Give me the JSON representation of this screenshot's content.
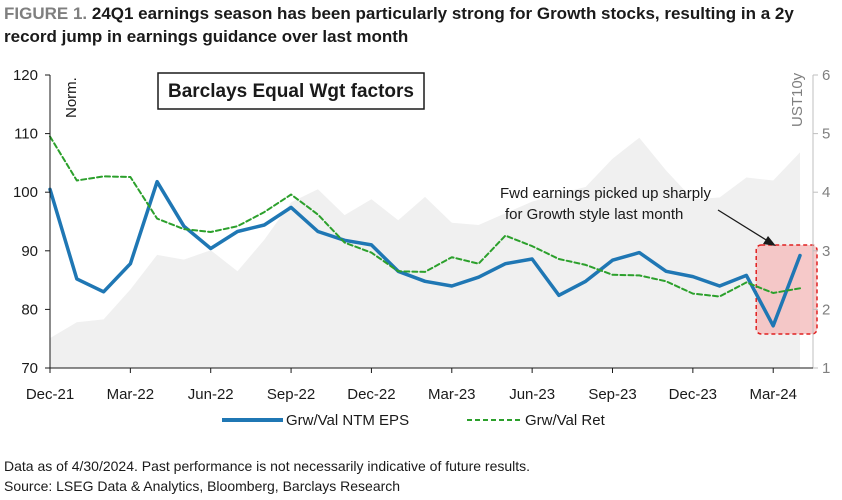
{
  "title": {
    "prefix": "FIGURE 1.",
    "text": "24Q1 earnings season has been particularly strong for Growth stocks, resulting in a 2y record jump in earnings guidance over last month"
  },
  "notes": {
    "line1": "Data as of 4/30/2024. Past performance is not necessarily indicative of future results.",
    "line2": "Source: LSEG Data & Analytics, Bloomberg, Barclays Research"
  },
  "chart_data": {
    "type": "line",
    "inset_title": "Barclays Equal Wgt factors",
    "left_axis_label": "Norm.",
    "right_axis_label": "UST10y",
    "ylim": [
      70,
      120
    ],
    "y_ticks": [
      70,
      80,
      90,
      100,
      110,
      120
    ],
    "y2lim": [
      1,
      6
    ],
    "y2_ticks": [
      1,
      2,
      3,
      4,
      5,
      6
    ],
    "x_tick_labels": [
      "Dec-21",
      "Mar-22",
      "Jun-22",
      "Sep-22",
      "Dec-22",
      "Mar-23",
      "Jun-23",
      "Sep-23",
      "Dec-23",
      "Mar-24"
    ],
    "x": [
      "Dec-21",
      "Jan-22",
      "Feb-22",
      "Mar-22",
      "Apr-22",
      "May-22",
      "Jun-22",
      "Jul-22",
      "Aug-22",
      "Sep-22",
      "Oct-22",
      "Nov-22",
      "Dec-22",
      "Jan-23",
      "Feb-23",
      "Mar-23",
      "Apr-23",
      "May-23",
      "Jun-23",
      "Jul-23",
      "Aug-23",
      "Sep-23",
      "Oct-23",
      "Nov-23",
      "Dec-23",
      "Jan-24",
      "Feb-24",
      "Mar-24",
      "Apr-24"
    ],
    "series": [
      {
        "name": "Grw/Val NTM EPS",
        "color": "#1f77b4",
        "style": "solid",
        "axis": "left",
        "values": [
          100.5,
          85.2,
          83.0,
          87.8,
          101.8,
          94.2,
          90.4,
          93.3,
          94.4,
          97.4,
          93.3,
          91.8,
          91.0,
          86.5,
          84.8,
          84.0,
          85.5,
          87.8,
          88.6,
          82.4,
          84.8,
          88.4,
          89.7,
          86.5,
          85.6,
          84.0,
          85.8,
          77.2,
          89.2
        ]
      },
      {
        "name": "Grw/Val Ret",
        "color": "#2ca02c",
        "style": "dashed",
        "axis": "left",
        "values": [
          109.5,
          102.0,
          102.7,
          102.6,
          95.5,
          93.7,
          93.2,
          94.2,
          96.6,
          99.6,
          96.2,
          91.4,
          89.7,
          86.5,
          86.4,
          88.9,
          87.8,
          92.6,
          90.8,
          88.6,
          87.6,
          85.9,
          85.8,
          84.8,
          82.7,
          82.2,
          84.6,
          82.8,
          83.6
        ]
      },
      {
        "name": "UST10y",
        "color": "#f0f0f0",
        "style": "area",
        "axis": "right",
        "values": [
          1.51,
          1.78,
          1.83,
          2.34,
          2.93,
          2.85,
          3.01,
          2.65,
          3.19,
          3.83,
          4.05,
          3.61,
          3.88,
          3.52,
          3.92,
          3.48,
          3.44,
          3.64,
          3.84,
          3.97,
          4.09,
          4.57,
          4.93,
          4.37,
          3.88,
          3.91,
          4.25,
          4.2,
          4.68
        ]
      }
    ],
    "annotation": {
      "line1": "Fwd earnings picked up sharply",
      "line2": "for Growth style last month"
    },
    "highlight_color": "#f4c0c0",
    "legend_position": "bottom"
  }
}
